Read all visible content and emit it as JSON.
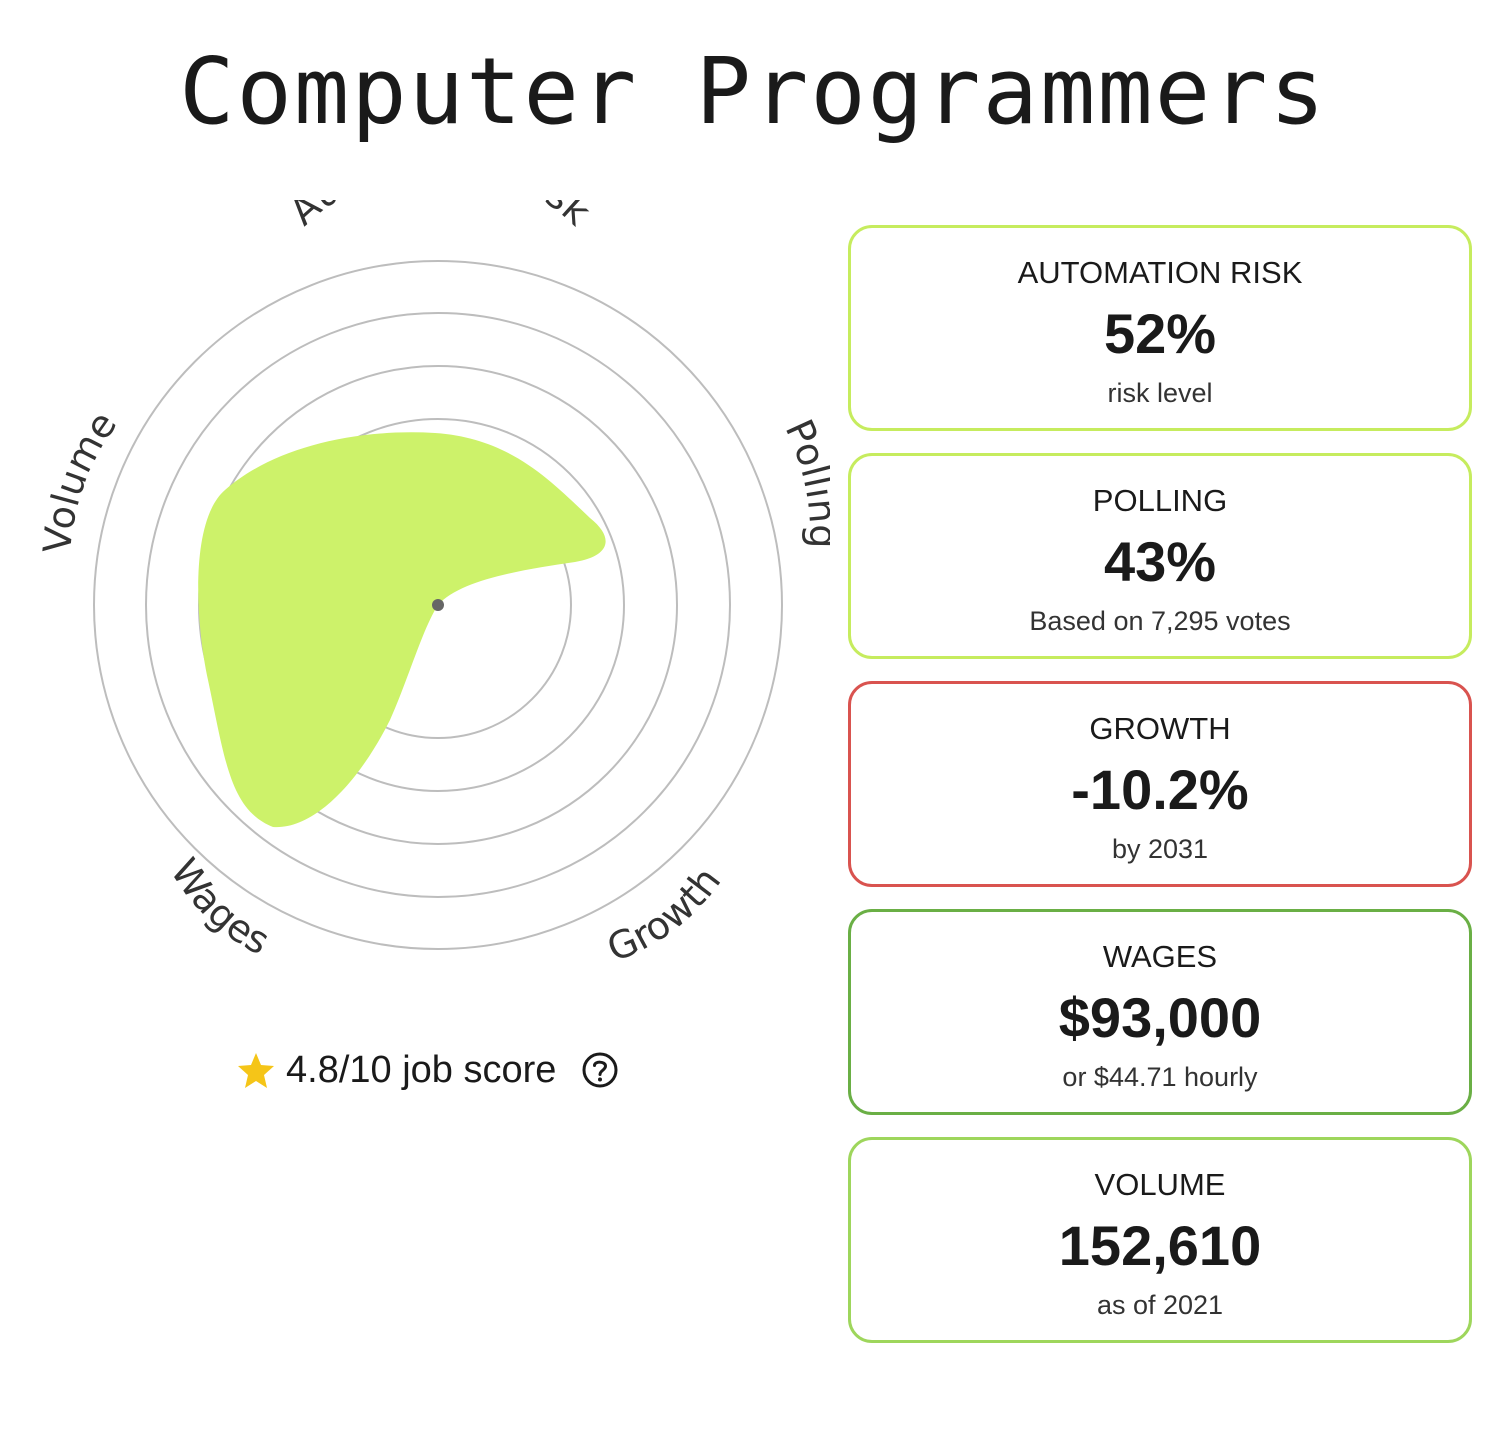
{
  "page": {
    "title": "Computer Programmers"
  },
  "radar": {
    "axes": [
      "Automation risk",
      "Polling",
      "Growth",
      "Wages",
      "Volume"
    ],
    "fill_color": "#cdf26a",
    "ring_color": "#bdbdbd",
    "center_color": "#666666"
  },
  "score": {
    "text": "4.8/10 job score",
    "icon": "star-icon",
    "help_icon": "question-circle-icon",
    "star_color": "#f5c518"
  },
  "cards": [
    {
      "label": "AUTOMATION RISK",
      "value": "52%",
      "sub": "risk level",
      "border_color": "#c6ec5e"
    },
    {
      "label": "POLLING",
      "value": "43%",
      "sub": "Based on 7,295 votes",
      "border_color": "#c6ec5e"
    },
    {
      "label": "GROWTH",
      "value": "-10.2%",
      "sub": "by 2031",
      "border_color": "#d9534f"
    },
    {
      "label": "WAGES",
      "value": "$93,000",
      "sub": "or $44.71 hourly",
      "border_color": "#6aaf45"
    },
    {
      "label": "VOLUME",
      "value": "152,610",
      "sub": "as of 2021",
      "border_color": "#9ed65c"
    }
  ]
}
